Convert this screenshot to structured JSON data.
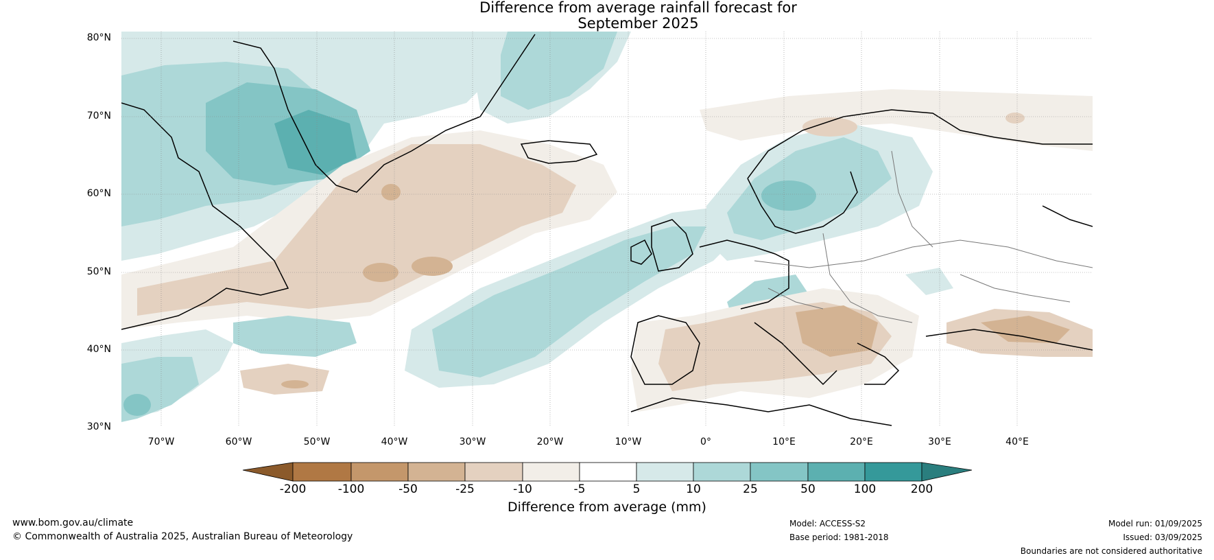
{
  "title": {
    "line1": "Difference from average rainfall forecast for",
    "line2": "September 2025"
  },
  "map": {
    "region": "North Atlantic and Europe",
    "lat_labels": [
      "80°N",
      "70°N",
      "60°N",
      "50°N",
      "40°N",
      "30°N"
    ],
    "lon_labels": [
      "70°W",
      "60°W",
      "50°W",
      "40°W",
      "30°W",
      "20°W",
      "10°W",
      "0°",
      "10°E",
      "20°E",
      "30°E",
      "40°E"
    ],
    "gridlines": true
  },
  "colorbar": {
    "title": "Difference from average (mm)",
    "labels": [
      "-200",
      "-100",
      "-50",
      "-25",
      "-10",
      "-5",
      "5",
      "10",
      "25",
      "50",
      "100",
      "200"
    ],
    "colors": [
      "#8b5a2b",
      "#b07844",
      "#c4976b",
      "#d3b393",
      "#e4d1c0",
      "#f2eee8",
      "#ffffff",
      "#d6e9e9",
      "#add8d8",
      "#84c5c5",
      "#5cb0b0",
      "#35999a",
      "#2a7e7e"
    ]
  },
  "footer": {
    "website": "www.bom.gov.au/climate",
    "copyright": "© Commonwealth of Australia 2025, Australian Bureau of Meteorology",
    "model": "Model: ACCESS-S2",
    "base_period": "Base period: 1981-2018",
    "model_run": "Model run: 01/09/2025",
    "issued": "Issued: 03/09/2025",
    "disclaimer": "Boundaries are not considered authoritative"
  }
}
